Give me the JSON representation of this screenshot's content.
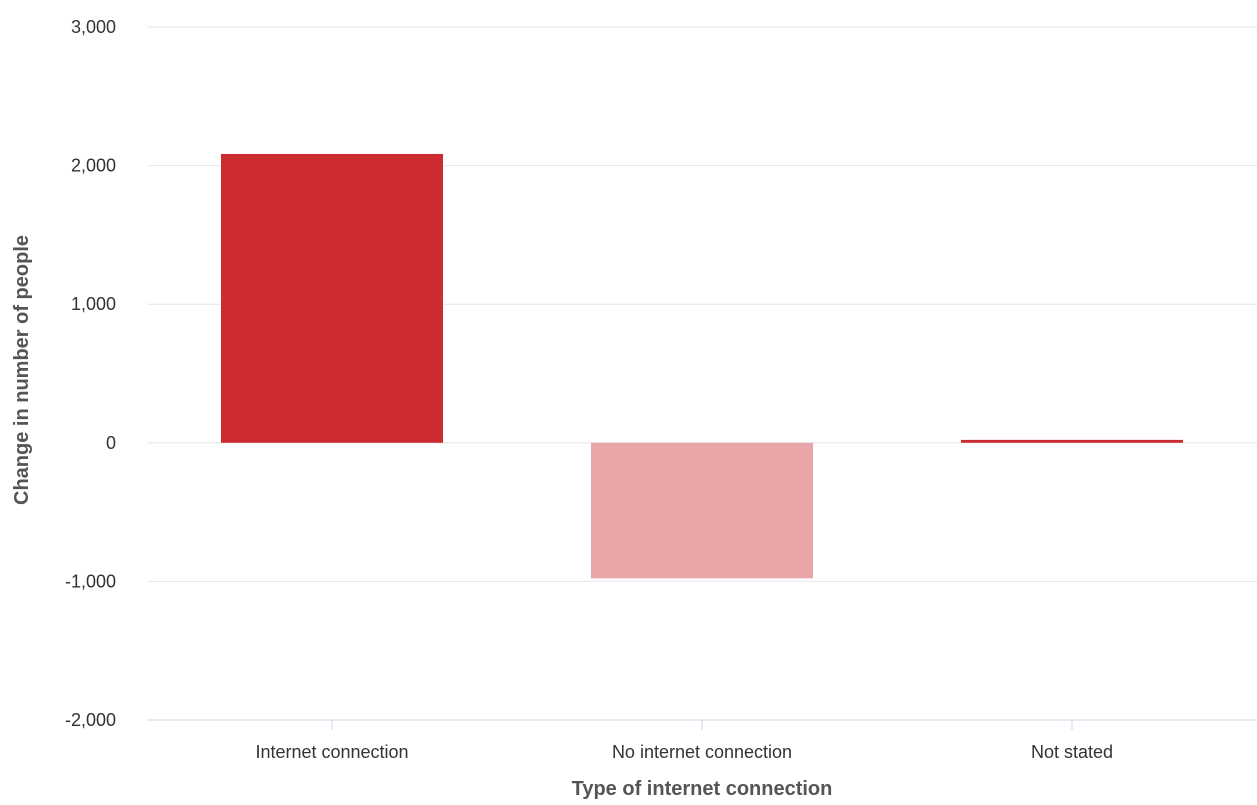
{
  "chart_data": {
    "type": "bar",
    "title": "",
    "xlabel": "Type of internet connection",
    "ylabel": "Change in number of people",
    "categories": [
      "Internet connection",
      "No internet connection",
      "Not stated"
    ],
    "values": [
      2084,
      -978,
      21
    ],
    "colors": [
      "#cc2b30",
      "#e9a5a7",
      "#cc2b30"
    ],
    "ylim": [
      -2000,
      3000
    ],
    "yticks": [
      -2000,
      -1000,
      0,
      1000,
      2000,
      3000
    ],
    "ytick_labels": [
      "-2,000",
      "-1,000",
      "0",
      "1,000",
      "2,000",
      "3,000"
    ],
    "grid": true,
    "legend": "none",
    "grid_color": "#e6e6e6",
    "axis_color": "#ccd6eb"
  }
}
